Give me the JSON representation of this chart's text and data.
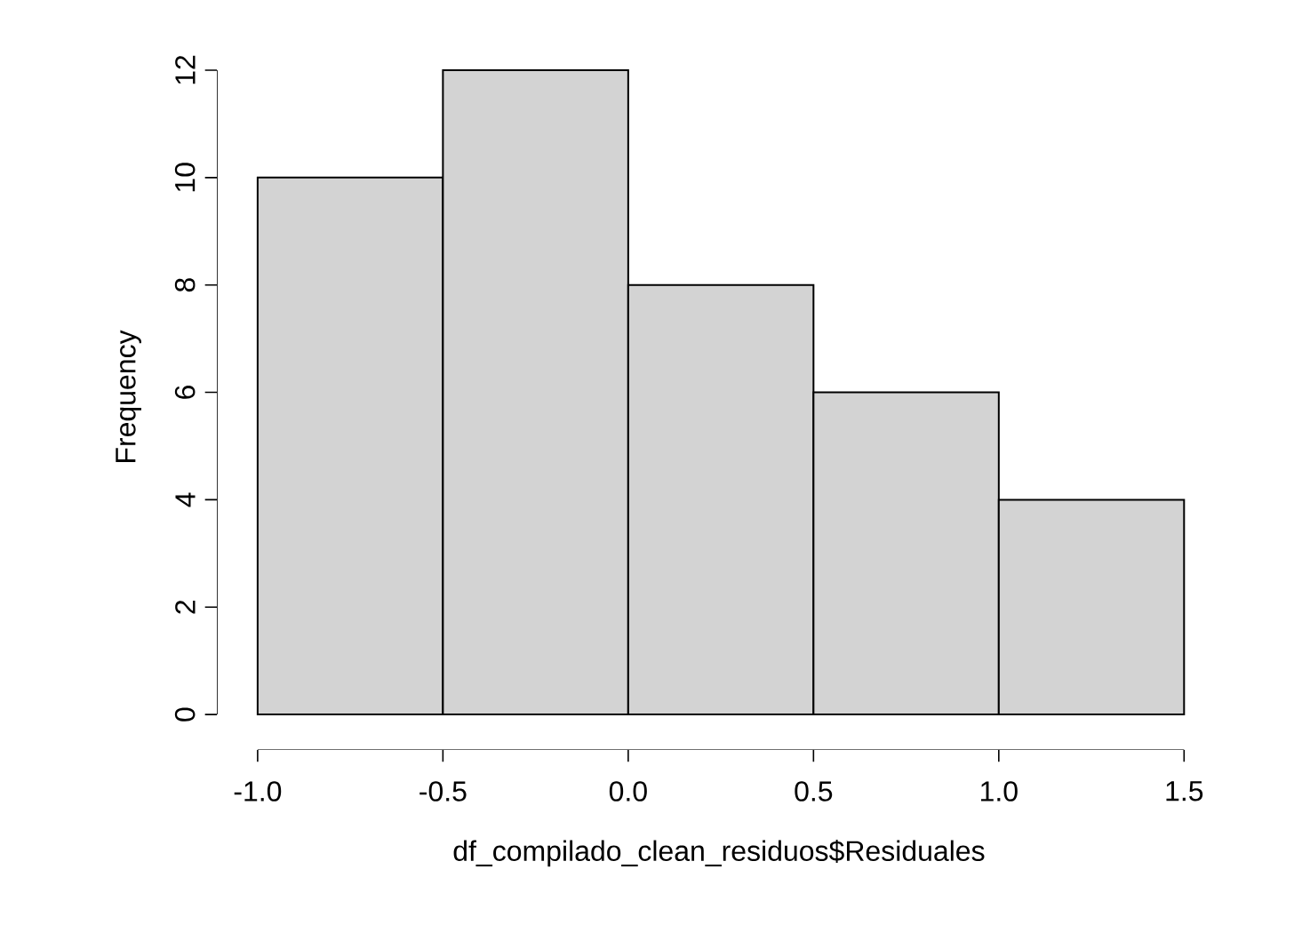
{
  "chart_data": {
    "type": "histogram",
    "xlabel": "df_compilado_clean_residuos$Residuales",
    "ylabel": "Frequency",
    "bins": [
      -1.0,
      -0.5,
      0.0,
      0.5,
      1.0,
      1.5
    ],
    "values": [
      10,
      12,
      8,
      6,
      4
    ],
    "color": "#d3d3d3",
    "xlim": [
      -1.0,
      1.5
    ],
    "ylim": [
      0,
      12
    ],
    "xticks": [
      {
        "value": -1.0,
        "label": "-1.0"
      },
      {
        "value": -0.5,
        "label": "-0.5"
      },
      {
        "value": 0.0,
        "label": "0.0"
      },
      {
        "value": 0.5,
        "label": "0.5"
      },
      {
        "value": 1.0,
        "label": "1.0"
      },
      {
        "value": 1.5,
        "label": "1.5"
      }
    ],
    "yticks": [
      0,
      2,
      4,
      6,
      8,
      10,
      12
    ]
  }
}
